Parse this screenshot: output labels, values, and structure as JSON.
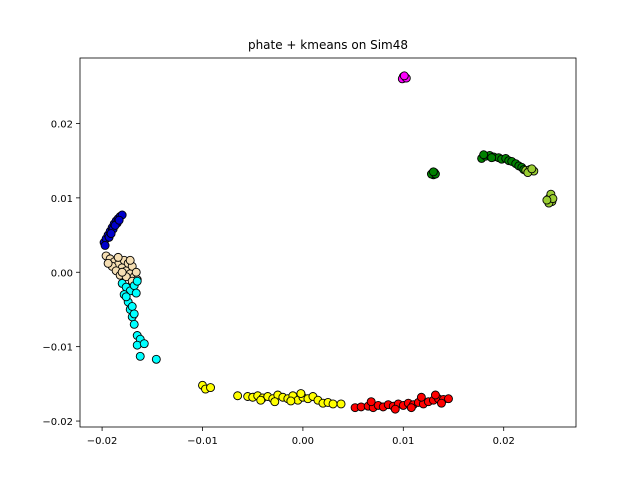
{
  "chart_data": {
    "type": "scatter",
    "title": "phate + kmeans on Sim48",
    "xlabel": "",
    "ylabel": "",
    "xlim": [
      -0.0222,
      0.0272
    ],
    "ylim": [
      -0.0208,
      0.0288
    ],
    "xticks": [
      -0.02,
      -0.01,
      0.0,
      0.01,
      0.02
    ],
    "xtick_labels": [
      "−0.02",
      "−0.01",
      "0.00",
      "0.01",
      "0.02"
    ],
    "yticks": [
      -0.02,
      -0.01,
      0.0,
      0.01,
      0.02
    ],
    "ytick_labels": [
      "−0.02",
      "−0.01",
      "0.00",
      "0.01",
      "0.02"
    ],
    "grid": false,
    "legend": "none",
    "marker_edge_color": "#000000",
    "series": [
      {
        "color": "#ff00ff",
        "points": [
          [
            0.01,
            0.0263
          ],
          [
            0.0101,
            0.0261
          ],
          [
            0.0102,
            0.0262
          ],
          [
            0.0099,
            0.026
          ],
          [
            0.0103,
            0.0261
          ],
          [
            0.0101,
            0.0264
          ]
        ]
      },
      {
        "color": "#008000",
        "points": [
          [
            0.0178,
            0.0153
          ],
          [
            0.0182,
            0.0156
          ],
          [
            0.0186,
            0.0157
          ],
          [
            0.019,
            0.0155
          ],
          [
            0.0195,
            0.0154
          ],
          [
            0.0198,
            0.0152
          ],
          [
            0.0202,
            0.0153
          ],
          [
            0.0205,
            0.015
          ],
          [
            0.0208,
            0.0149
          ],
          [
            0.0212,
            0.0146
          ],
          [
            0.0215,
            0.0143
          ],
          [
            0.0218,
            0.0141
          ],
          [
            0.022,
            0.0138
          ],
          [
            0.018,
            0.0158
          ],
          [
            0.0188,
            0.0154
          ],
          [
            0.0129,
            0.0133
          ],
          [
            0.0131,
            0.0134
          ],
          [
            0.013,
            0.0131
          ],
          [
            0.0128,
            0.0132
          ],
          [
            0.0132,
            0.0132
          ],
          [
            0.013,
            0.0135
          ]
        ]
      },
      {
        "color": "#9acd32",
        "points": [
          [
            0.0222,
            0.0137
          ],
          [
            0.0226,
            0.0138
          ],
          [
            0.023,
            0.0136
          ],
          [
            0.0224,
            0.0134
          ],
          [
            0.0228,
            0.0139
          ],
          [
            0.0244,
            0.0098
          ],
          [
            0.0246,
            0.0101
          ],
          [
            0.0248,
            0.0095
          ],
          [
            0.0245,
            0.0093
          ],
          [
            0.0247,
            0.0105
          ],
          [
            0.0249,
            0.0099
          ],
          [
            0.0243,
            0.0097
          ]
        ]
      },
      {
        "color": "#0000cd",
        "points": [
          [
            -0.0198,
            0.004
          ],
          [
            -0.0196,
            0.0045
          ],
          [
            -0.0194,
            0.005
          ],
          [
            -0.0192,
            0.0055
          ],
          [
            -0.019,
            0.006
          ],
          [
            -0.0188,
            0.0065
          ],
          [
            -0.0186,
            0.0069
          ],
          [
            -0.0184,
            0.0072
          ],
          [
            -0.0182,
            0.0075
          ],
          [
            -0.018,
            0.0077
          ],
          [
            -0.0193,
            0.0047
          ],
          [
            -0.0189,
            0.0058
          ],
          [
            -0.0185,
            0.0066
          ],
          [
            -0.0197,
            0.0036
          ],
          [
            -0.0191,
            0.0052
          ],
          [
            -0.0187,
            0.0063
          ],
          [
            -0.0183,
            0.007
          ]
        ]
      },
      {
        "color": "#f5deb3",
        "points": [
          [
            -0.0196,
            0.0022
          ],
          [
            -0.0192,
            0.0018
          ],
          [
            -0.0188,
            0.0014
          ],
          [
            -0.0184,
            0.001
          ],
          [
            -0.018,
            0.0006
          ],
          [
            -0.0176,
            0.0002
          ],
          [
            -0.0172,
            -0.0002
          ],
          [
            -0.0168,
            -0.0006
          ],
          [
            -0.0165,
            -0.001
          ],
          [
            -0.019,
            0.0008
          ],
          [
            -0.0186,
            0.0002
          ],
          [
            -0.0182,
            -0.0004
          ],
          [
            -0.0178,
            0.0016
          ],
          [
            -0.0174,
            0.0012
          ],
          [
            -0.017,
            0.0008
          ],
          [
            -0.0166,
            0.0
          ],
          [
            -0.0194,
            0.0012
          ],
          [
            -0.0184,
            0.002
          ],
          [
            -0.0176,
            -0.0006
          ],
          [
            -0.017,
            -0.0012
          ],
          [
            -0.018,
            0.0
          ],
          [
            -0.0172,
            0.0016
          ]
        ]
      },
      {
        "color": "#00ffff",
        "points": [
          [
            -0.018,
            -0.0015
          ],
          [
            -0.0176,
            -0.002
          ],
          [
            -0.0172,
            -0.0025
          ],
          [
            -0.0168,
            -0.0018
          ],
          [
            -0.0165,
            -0.0012
          ],
          [
            -0.0178,
            -0.003
          ],
          [
            -0.0174,
            -0.004
          ],
          [
            -0.0172,
            -0.005
          ],
          [
            -0.017,
            -0.006
          ],
          [
            -0.0168,
            -0.007
          ],
          [
            -0.0165,
            -0.0085
          ],
          [
            -0.0162,
            -0.009
          ],
          [
            -0.0165,
            -0.0098
          ],
          [
            -0.0158,
            -0.0096
          ],
          [
            -0.0162,
            -0.0113
          ],
          [
            -0.0146,
            -0.0117
          ],
          [
            -0.0176,
            -0.0033
          ],
          [
            -0.017,
            -0.0046
          ],
          [
            -0.0166,
            -0.0028
          ],
          [
            -0.0168,
            -0.0056
          ]
        ]
      },
      {
        "color": "#ffff00",
        "points": [
          [
            -0.01,
            -0.0152
          ],
          [
            -0.0097,
            -0.0157
          ],
          [
            -0.0092,
            -0.0155
          ],
          [
            -0.0065,
            -0.0166
          ],
          [
            -0.0055,
            -0.0167
          ],
          [
            -0.005,
            -0.0168
          ],
          [
            -0.0045,
            -0.0166
          ],
          [
            -0.004,
            -0.0169
          ],
          [
            -0.0035,
            -0.0167
          ],
          [
            -0.003,
            -0.017
          ],
          [
            -0.0025,
            -0.0165
          ],
          [
            -0.002,
            -0.0168
          ],
          [
            -0.0015,
            -0.017
          ],
          [
            -0.001,
            -0.0166
          ],
          [
            -0.0005,
            -0.0172
          ],
          [
            0.0,
            -0.0168
          ],
          [
            0.0005,
            -0.017
          ],
          [
            0.001,
            -0.0167
          ],
          [
            0.0015,
            -0.0172
          ],
          [
            0.002,
            -0.0176
          ],
          [
            0.0025,
            -0.0175
          ],
          [
            0.003,
            -0.0177
          ],
          [
            0.0038,
            -0.0177
          ],
          [
            -0.0042,
            -0.0172
          ],
          [
            -0.0028,
            -0.0174
          ],
          [
            -0.0012,
            -0.0173
          ],
          [
            -0.0002,
            -0.0163
          ]
        ]
      },
      {
        "color": "#ff0000",
        "points": [
          [
            0.0052,
            -0.0182
          ],
          [
            0.0058,
            -0.0181
          ],
          [
            0.0065,
            -0.018
          ],
          [
            0.007,
            -0.0182
          ],
          [
            0.0075,
            -0.0179
          ],
          [
            0.008,
            -0.0181
          ],
          [
            0.0085,
            -0.0178
          ],
          [
            0.009,
            -0.018
          ],
          [
            0.0095,
            -0.0177
          ],
          [
            0.01,
            -0.0179
          ],
          [
            0.0105,
            -0.0176
          ],
          [
            0.011,
            -0.0178
          ],
          [
            0.0115,
            -0.0175
          ],
          [
            0.012,
            -0.0177
          ],
          [
            0.0125,
            -0.0174
          ],
          [
            0.013,
            -0.0172
          ],
          [
            0.0135,
            -0.017
          ],
          [
            0.014,
            -0.0171
          ],
          [
            0.0145,
            -0.017
          ],
          [
            0.0132,
            -0.0165
          ],
          [
            0.0068,
            -0.0174
          ],
          [
            0.0092,
            -0.0184
          ],
          [
            0.0118,
            -0.0168
          ],
          [
            0.0108,
            -0.0182
          ],
          [
            0.0138,
            -0.0176
          ]
        ]
      }
    ]
  }
}
